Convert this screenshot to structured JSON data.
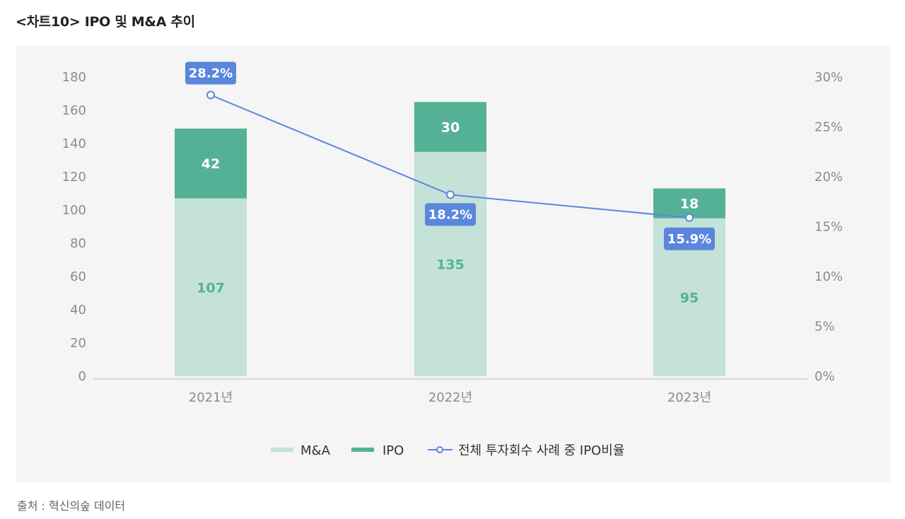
{
  "header": {
    "title": "<차트10>  IPO 및 M&A 추이"
  },
  "footer": {
    "source": "출처 : 혁신의숲 데이터"
  },
  "colors": {
    "ma": "#c4e2d8",
    "ipo": "#55b196",
    "line": "#5b86dd",
    "ma_label": "#55b196",
    "ipo_label": "#ffffff"
  },
  "chart_data": {
    "type": "bar",
    "stacked": true,
    "categories": [
      "2021년",
      "2022년",
      "2023년"
    ],
    "series": [
      {
        "name": "M&A",
        "type": "bar",
        "axis": "left",
        "values": [
          107,
          135,
          95
        ]
      },
      {
        "name": "IPO",
        "type": "bar",
        "axis": "left",
        "values": [
          42,
          30,
          18
        ]
      },
      {
        "name": "전체 투자회수 사례 중 IPO비율",
        "type": "line",
        "axis": "right",
        "values": [
          28.2,
          18.2,
          15.9
        ],
        "labels": [
          "28.2%",
          "18.2%",
          "15.9%"
        ]
      }
    ],
    "y_left": {
      "min": 0,
      "max": 180,
      "ticks": [
        "0",
        "20",
        "40",
        "60",
        "80",
        "100",
        "120",
        "140",
        "160",
        "180"
      ]
    },
    "y_right": {
      "min": 0,
      "max": 30,
      "ticks": [
        "0%",
        "5%",
        "10%",
        "15%",
        "20%",
        "25%",
        "30%"
      ]
    },
    "legend": [
      "M&A",
      "IPO",
      "전체 투자회수 사례 중 IPO비율"
    ],
    "legend_position": "bottom-center",
    "grid": false
  }
}
